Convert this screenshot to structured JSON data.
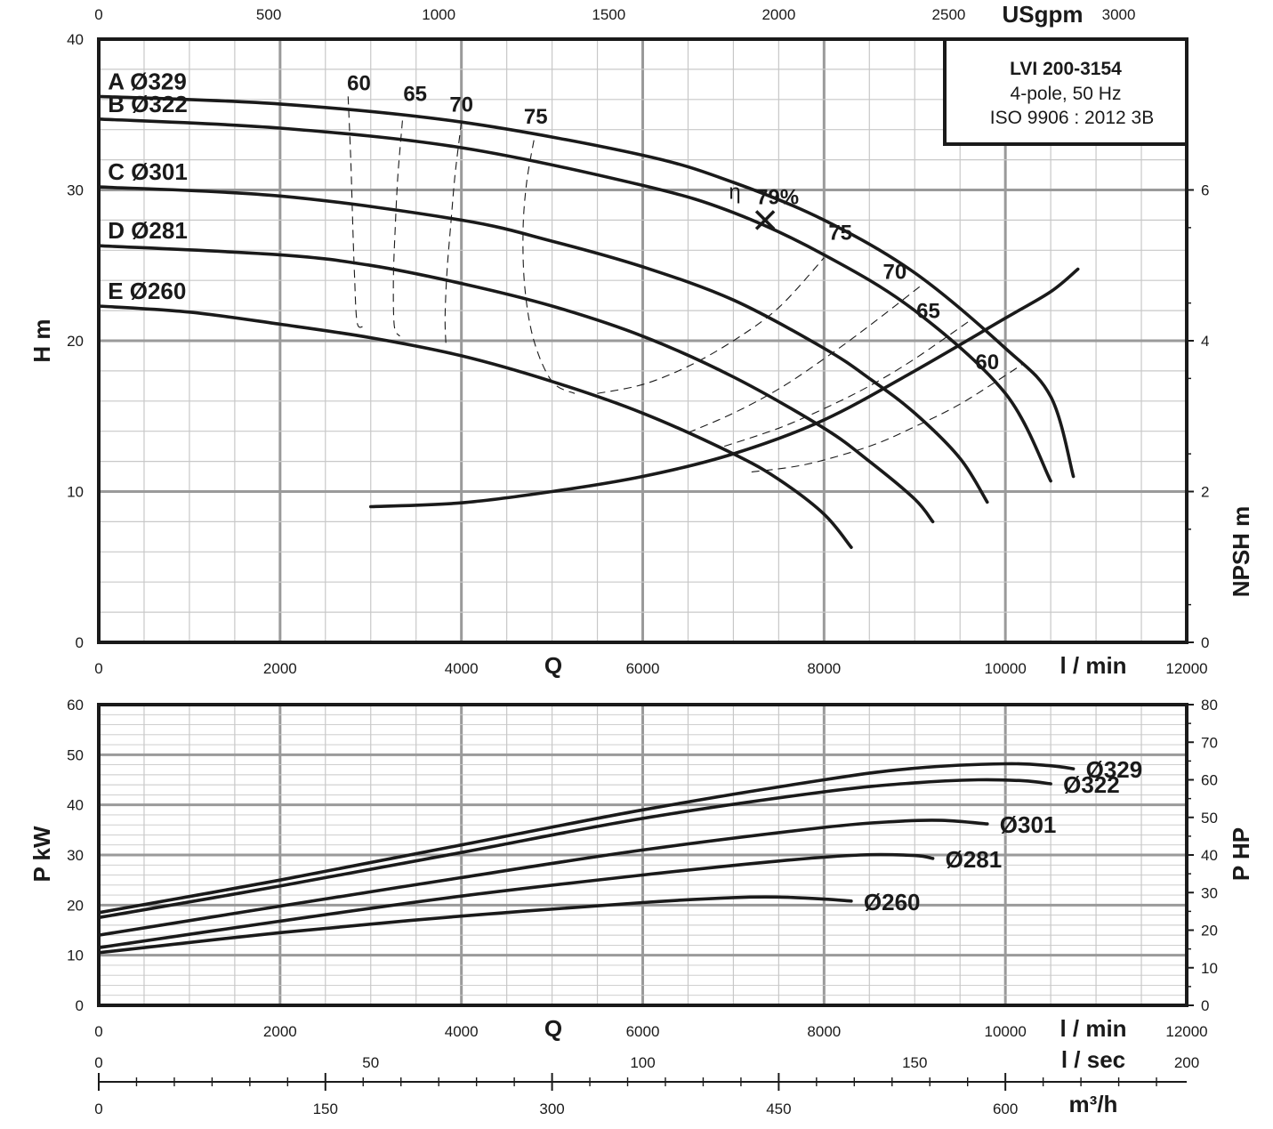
{
  "colors": {
    "curve": "#1a1a1a",
    "grid_major": "#9a9a9a",
    "grid_minor": "#c8c8c8",
    "frame": "#1a1a1a"
  },
  "info_box": {
    "title": "LVI 200-3154",
    "line1": "4-pole, 50 Hz",
    "line2": "ISO 9906 : 2012 3B"
  },
  "top_axis": {
    "unit": "USgpm",
    "ticks": [
      "0",
      "500",
      "1000",
      "1500",
      "2000",
      "2500",
      "3000"
    ]
  },
  "bottom_axes": {
    "q_symbol": "Q",
    "lmin_unit": "l / min",
    "lsec_unit": "l / sec",
    "lsec_ticks": [
      "0",
      "50",
      "100",
      "150",
      "200"
    ],
    "m3h_unit": "m³/h",
    "m3h_ticks": [
      "0",
      "150",
      "300",
      "450",
      "600"
    ]
  },
  "chart_data": [
    {
      "type": "line",
      "name": "head",
      "xlabel": "l / min",
      "ylabel": "H m",
      "y2label": "NPSH m",
      "xlim": [
        0,
        12000
      ],
      "ylim": [
        0,
        40
      ],
      "y2lim": [
        0,
        8
      ],
      "x_ticks": [
        0,
        2000,
        4000,
        6000,
        8000,
        10000,
        12000
      ],
      "y_ticks": [
        0,
        10,
        20,
        30,
        40
      ],
      "y2_ticks": [
        0,
        2,
        4,
        6
      ],
      "grid": true,
      "series": [
        {
          "name": "A Ø329",
          "x": [
            0,
            2000,
            4000,
            6000,
            7000,
            8000,
            9000,
            10000,
            10500,
            10750
          ],
          "y": [
            36.2,
            35.7,
            34.5,
            32.3,
            30.5,
            28.0,
            24.5,
            19.5,
            16.3,
            11.0
          ]
        },
        {
          "name": "B Ø322",
          "x": [
            0,
            2000,
            4000,
            6000,
            7000,
            8000,
            9000,
            10000,
            10500
          ],
          "y": [
            34.7,
            34.1,
            32.8,
            30.3,
            28.5,
            25.7,
            22.0,
            16.5,
            10.7
          ]
        },
        {
          "name": "C Ø301",
          "x": [
            0,
            2000,
            4000,
            5000,
            6000,
            7000,
            8000,
            8500,
            9000,
            9500,
            9800
          ],
          "y": [
            30.2,
            29.6,
            28.0,
            26.6,
            24.9,
            22.7,
            19.5,
            17.5,
            15.2,
            12.2,
            9.3
          ]
        },
        {
          "name": "D Ø281",
          "x": [
            0,
            2000,
            3000,
            4000,
            5000,
            6000,
            7000,
            8000,
            8500,
            9000,
            9200
          ],
          "y": [
            26.3,
            25.7,
            25.0,
            23.8,
            22.3,
            20.3,
            17.6,
            14.2,
            12.0,
            9.5,
            8.0
          ]
        },
        {
          "name": "E Ø260",
          "x": [
            0,
            1000,
            2000,
            3000,
            4000,
            5000,
            6000,
            7000,
            7500,
            8000,
            8300
          ],
          "y": [
            22.3,
            21.9,
            21.1,
            20.2,
            19.0,
            17.3,
            15.2,
            12.5,
            10.8,
            8.5,
            6.3
          ]
        },
        {
          "name": "NPSH",
          "axis": "y2",
          "x": [
            3000,
            4000,
            5000,
            6000,
            7000,
            8000,
            9000,
            10000,
            10500,
            10800
          ],
          "y": [
            1.8,
            1.85,
            2.0,
            2.2,
            2.5,
            2.95,
            3.6,
            4.3,
            4.65,
            4.95
          ]
        }
      ],
      "efficiency_lines": [
        {
          "label": "60",
          "x": [
            2750,
            2780,
            2800,
            2820,
            2850,
            2930
          ],
          "y": [
            36.2,
            32.0,
            28.0,
            24.5,
            21.2,
            21.0
          ]
        },
        {
          "label": "65",
          "x": [
            3350,
            3300,
            3270,
            3250,
            3260,
            3320
          ],
          "y": [
            34.6,
            31.0,
            27.5,
            24.0,
            21.0,
            20.3
          ]
        },
        {
          "label": "70",
          "x": [
            4000,
            3930,
            3880,
            3840,
            3820,
            3830
          ],
          "y": [
            34.5,
            31.0,
            27.5,
            24.5,
            21.5,
            19.7
          ]
        },
        {
          "label": "75",
          "x": [
            4800,
            4720,
            4680,
            4700,
            4800,
            5000,
            5250
          ],
          "y": [
            33.3,
            30.5,
            27.3,
            23.5,
            20.0,
            17.3,
            16.5
          ]
        },
        {
          "label": "75",
          "x": [
            5500,
            6000,
            6500,
            7000,
            7500,
            8000
          ],
          "y": [
            16.5,
            17.1,
            18.3,
            20.0,
            22.2,
            25.5
          ]
        },
        {
          "label": "70",
          "x": [
            6500,
            7000,
            7500,
            8000,
            8500,
            9100
          ],
          "y": [
            13.9,
            15.2,
            16.8,
            18.8,
            21.0,
            23.8
          ]
        },
        {
          "label": "65",
          "x": [
            6900,
            7500,
            8000,
            8500,
            9000,
            9600
          ],
          "y": [
            13.0,
            14.2,
            15.5,
            17.0,
            18.8,
            21.3
          ]
        },
        {
          "label": "60",
          "x": [
            7200,
            7800,
            8500,
            9000,
            9500,
            10000,
            10200
          ],
          "y": [
            11.3,
            11.8,
            13.0,
            14.3,
            15.8,
            17.7,
            18.5
          ]
        }
      ],
      "efficiency_label_positions": [
        {
          "label": "60",
          "x": 2870,
          "y": 36.6
        },
        {
          "label": "65",
          "x": 3490,
          "y": 35.9
        },
        {
          "label": "70",
          "x": 4000,
          "y": 35.2
        },
        {
          "label": "75",
          "x": 4820,
          "y": 34.4
        },
        {
          "label": "75",
          "x": 8180,
          "y": 26.7
        },
        {
          "label": "70",
          "x": 8780,
          "y": 24.1
        },
        {
          "label": "65",
          "x": 9150,
          "y": 21.5
        },
        {
          "label": "60",
          "x": 9800,
          "y": 18.1
        }
      ],
      "bep": {
        "label": "79%",
        "symbol": "η",
        "x": 7350,
        "y": 28.0
      }
    },
    {
      "type": "line",
      "name": "power",
      "xlabel": "l / min",
      "ylabel": "P kW",
      "y2label": "P HP",
      "xlim": [
        0,
        12000
      ],
      "ylim": [
        0,
        60
      ],
      "y2lim": [
        0,
        80
      ],
      "x_ticks": [
        0,
        2000,
        4000,
        6000,
        8000,
        10000,
        12000
      ],
      "y_ticks": [
        0,
        10,
        20,
        30,
        40,
        50,
        60
      ],
      "y2_ticks": [
        0,
        10,
        20,
        30,
        40,
        50,
        60,
        70,
        80
      ],
      "grid": true,
      "series": [
        {
          "name": "Ø329",
          "x": [
            0,
            2000,
            4000,
            6000,
            8000,
            9000,
            10000,
            10500,
            10750
          ],
          "y": [
            18.5,
            25.0,
            32.0,
            39.0,
            45.0,
            47.3,
            48.2,
            47.8,
            47.2
          ]
        },
        {
          "name": "Ø322",
          "x": [
            0,
            2000,
            4000,
            6000,
            8000,
            9000,
            9700,
            10200,
            10500
          ],
          "y": [
            17.5,
            23.8,
            30.5,
            37.3,
            42.6,
            44.4,
            45.0,
            44.8,
            44.2
          ]
        },
        {
          "name": "Ø301",
          "x": [
            0,
            2000,
            4000,
            6000,
            8000,
            8800,
            9300,
            9800
          ],
          "y": [
            14.0,
            19.8,
            25.5,
            31.0,
            35.5,
            36.7,
            36.9,
            36.2
          ]
        },
        {
          "name": "Ø281",
          "x": [
            0,
            2000,
            4000,
            6000,
            7500,
            8400,
            9000,
            9200
          ],
          "y": [
            11.5,
            16.8,
            21.8,
            26.0,
            28.8,
            30.0,
            29.9,
            29.3
          ]
        },
        {
          "name": "Ø260",
          "x": [
            0,
            2000,
            4000,
            6000,
            7000,
            7500,
            8000,
            8300
          ],
          "y": [
            10.5,
            14.5,
            17.8,
            20.5,
            21.5,
            21.6,
            21.2,
            20.8
          ]
        }
      ]
    }
  ]
}
